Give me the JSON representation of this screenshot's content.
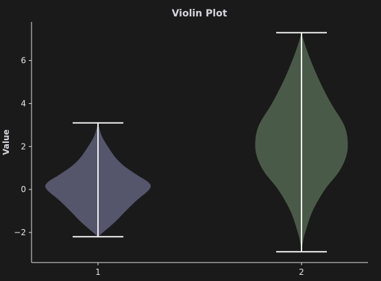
{
  "chart_data": {
    "type": "violin",
    "title": "Violin Plot",
    "xlabel": "",
    "ylabel": "Value",
    "categories": [
      "1",
      "2"
    ],
    "ylim": [
      -3.4,
      7.8
    ],
    "yticks": [
      -2,
      0,
      2,
      4,
      6
    ],
    "ytick_labels": [
      "−2",
      "0",
      "2",
      "4",
      "6"
    ],
    "grid": false,
    "series": [
      {
        "color": "#55556b",
        "min": -2.2,
        "max": 3.1,
        "density": [
          [
            -2.2,
            0.0
          ],
          [
            -2.0,
            0.08
          ],
          [
            -1.5,
            0.28
          ],
          [
            -1.0,
            0.45
          ],
          [
            -0.5,
            0.63
          ],
          [
            0.0,
            0.83
          ],
          [
            0.3,
            0.83
          ],
          [
            0.7,
            0.62
          ],
          [
            1.1,
            0.42
          ],
          [
            1.5,
            0.28
          ],
          [
            2.0,
            0.16
          ],
          [
            2.5,
            0.06
          ],
          [
            3.1,
            0.0
          ]
        ]
      },
      {
        "color": "#4a5a48",
        "min": -2.9,
        "max": 7.3,
        "density": [
          [
            -2.9,
            0.0
          ],
          [
            -2.5,
            0.02
          ],
          [
            -2.0,
            0.06
          ],
          [
            -1.0,
            0.18
          ],
          [
            0.0,
            0.38
          ],
          [
            0.8,
            0.6
          ],
          [
            1.5,
            0.72
          ],
          [
            2.2,
            0.75
          ],
          [
            3.0,
            0.69
          ],
          [
            4.0,
            0.48
          ],
          [
            5.0,
            0.3
          ],
          [
            6.0,
            0.15
          ],
          [
            6.8,
            0.05
          ],
          [
            7.3,
            0.0
          ]
        ]
      }
    ]
  }
}
